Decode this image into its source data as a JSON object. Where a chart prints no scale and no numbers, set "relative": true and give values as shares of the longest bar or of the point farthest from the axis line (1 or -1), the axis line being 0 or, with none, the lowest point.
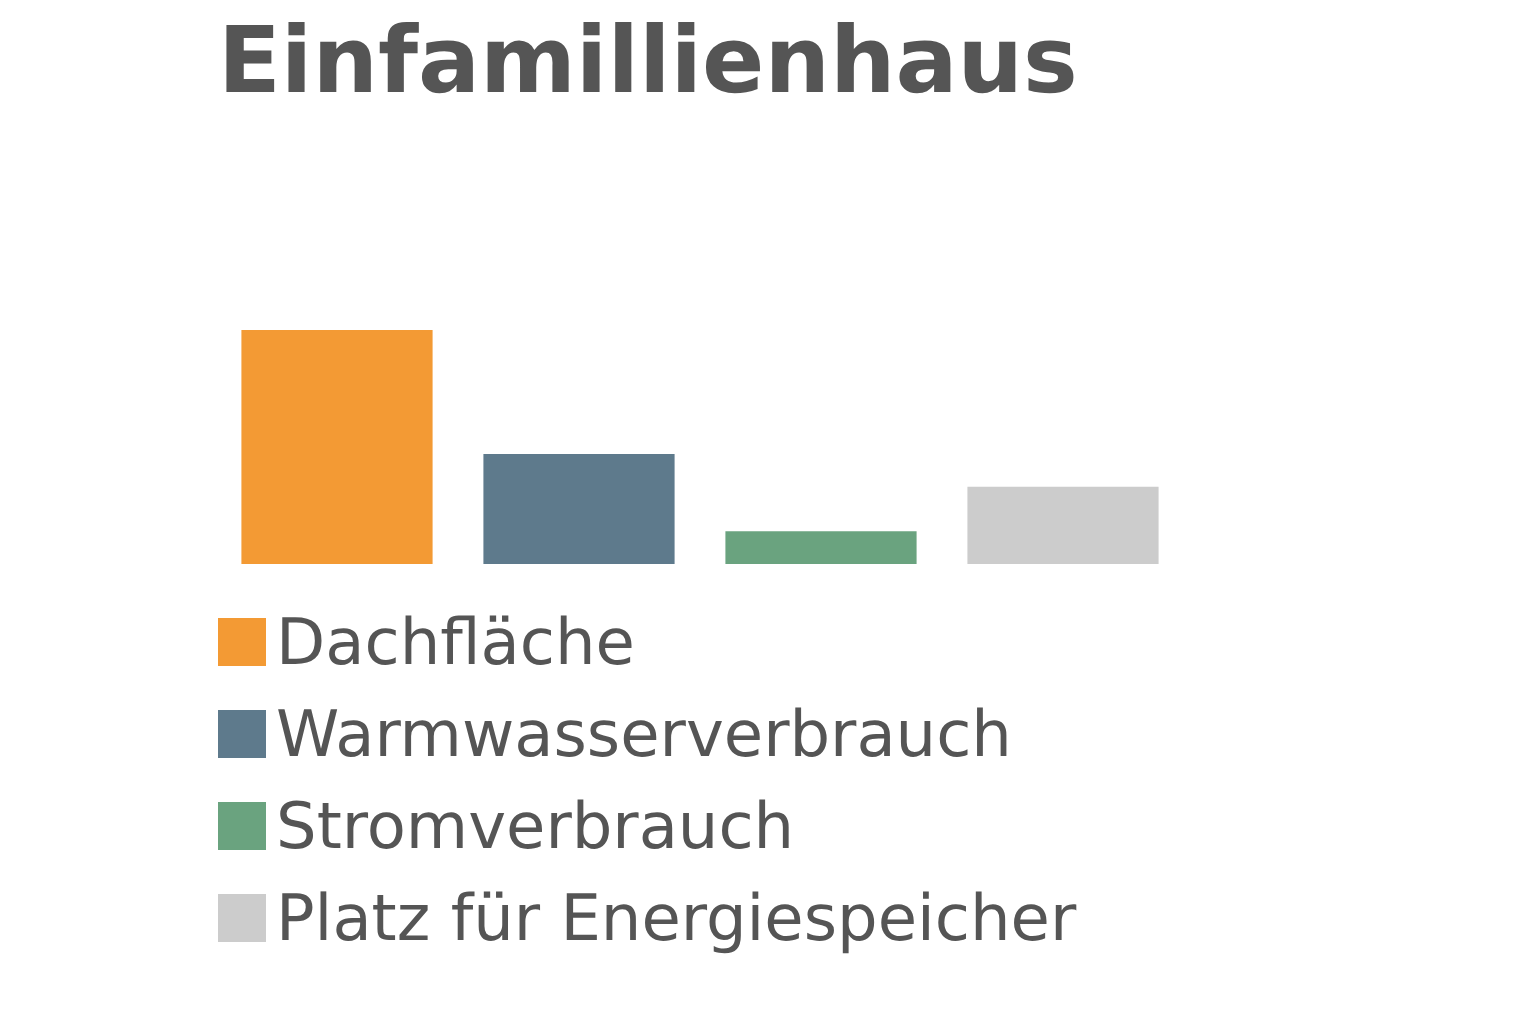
{
  "chart_data": {
    "type": "bar",
    "title": "Einfamillienhaus",
    "relative": true,
    "stacked": true,
    "categories": [
      null,
      null,
      null,
      null
    ],
    "series": [
      {
        "name": "Dachfläche",
        "color": "#f39a34",
        "values": [
          1,
          null,
          null,
          null
        ]
      },
      {
        "name": "Warmwasserverbrauch",
        "color": "#5e7a8c",
        "values": [
          null,
          0.47,
          null,
          null
        ]
      },
      {
        "name": "Stromverbrauch",
        "color": "#6aa37f",
        "values": [
          null,
          null,
          0.14,
          null
        ]
      },
      {
        "name": "Platz für Energiespeicher",
        "color": "#cccccc",
        "values": [
          null,
          null,
          null,
          0.33
        ]
      }
    ],
    "legend": "bottom"
  }
}
